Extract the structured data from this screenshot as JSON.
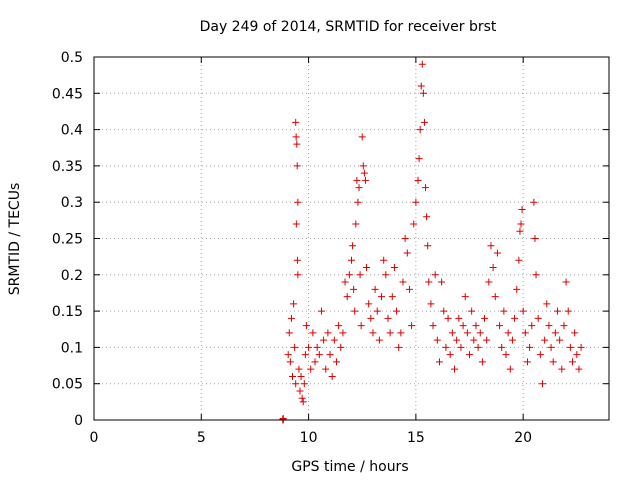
{
  "chart_data": {
    "type": "scatter",
    "title": "Day 249 of 2014, SRMTID for receiver brst",
    "xlabel": "GPS time / hours",
    "ylabel": "SRMTID / TECUs",
    "xlim": [
      0,
      24
    ],
    "ylim": [
      0,
      0.5
    ],
    "xticks": [
      0,
      5,
      10,
      15,
      20
    ],
    "xtick_labels": [
      "0",
      "5",
      "10",
      "15",
      "20"
    ],
    "yticks": [
      0,
      0.05,
      0.1,
      0.15,
      0.2,
      0.25,
      0.3,
      0.35,
      0.4,
      0.45,
      0.5
    ],
    "ytick_labels": [
      "0",
      "0.05",
      "0.1",
      "0.15",
      "0.2",
      "0.25",
      "0.3",
      "0.35",
      "0.4",
      "0.45",
      "0.5"
    ],
    "grid": true,
    "marker": "+",
    "series": [
      {
        "name": "SRMTID",
        "color": "#e00000",
        "points": [
          [
            8.8,
            0.0
          ],
          [
            8.8,
            0.001
          ],
          [
            8.82,
            0.0
          ],
          [
            8.82,
            0.002
          ],
          [
            9.05,
            0.09
          ],
          [
            9.1,
            0.12
          ],
          [
            9.15,
            0.08
          ],
          [
            9.2,
            0.14
          ],
          [
            9.25,
            0.06
          ],
          [
            9.3,
            0.16
          ],
          [
            9.35,
            0.1
          ],
          [
            9.4,
            0.05
          ],
          [
            9.4,
            0.41
          ],
          [
            9.42,
            0.39
          ],
          [
            9.45,
            0.38
          ],
          [
            9.47,
            0.35
          ],
          [
            9.5,
            0.3
          ],
          [
            9.43,
            0.27
          ],
          [
            9.48,
            0.22
          ],
          [
            9.5,
            0.2
          ],
          [
            9.55,
            0.07
          ],
          [
            9.6,
            0.04
          ],
          [
            9.65,
            0.06
          ],
          [
            9.7,
            0.03
          ],
          [
            9.75,
            0.025
          ],
          [
            9.8,
            0.05
          ],
          [
            9.85,
            0.09
          ],
          [
            9.9,
            0.13
          ],
          [
            10.0,
            0.1
          ],
          [
            10.1,
            0.07
          ],
          [
            10.2,
            0.12
          ],
          [
            10.3,
            0.08
          ],
          [
            10.4,
            0.1
          ],
          [
            10.5,
            0.09
          ],
          [
            10.6,
            0.15
          ],
          [
            10.7,
            0.11
          ],
          [
            10.8,
            0.07
          ],
          [
            10.9,
            0.12
          ],
          [
            11.0,
            0.09
          ],
          [
            11.1,
            0.06
          ],
          [
            11.2,
            0.11
          ],
          [
            11.3,
            0.08
          ],
          [
            11.4,
            0.13
          ],
          [
            11.5,
            0.1
          ],
          [
            11.6,
            0.12
          ],
          [
            11.7,
            0.19
          ],
          [
            11.8,
            0.17
          ],
          [
            11.9,
            0.2
          ],
          [
            12.0,
            0.22
          ],
          [
            12.05,
            0.24
          ],
          [
            12.1,
            0.18
          ],
          [
            12.15,
            0.15
          ],
          [
            12.2,
            0.27
          ],
          [
            12.25,
            0.33
          ],
          [
            12.3,
            0.3
          ],
          [
            12.35,
            0.32
          ],
          [
            12.4,
            0.2
          ],
          [
            12.45,
            0.13
          ],
          [
            12.5,
            0.39
          ],
          [
            12.55,
            0.35
          ],
          [
            12.6,
            0.34
          ],
          [
            12.65,
            0.33
          ],
          [
            12.7,
            0.21
          ],
          [
            12.8,
            0.16
          ],
          [
            12.9,
            0.14
          ],
          [
            13.0,
            0.12
          ],
          [
            13.1,
            0.18
          ],
          [
            13.2,
            0.15
          ],
          [
            13.3,
            0.11
          ],
          [
            13.4,
            0.17
          ],
          [
            13.5,
            0.22
          ],
          [
            13.6,
            0.2
          ],
          [
            13.7,
            0.14
          ],
          [
            13.8,
            0.12
          ],
          [
            13.9,
            0.17
          ],
          [
            14.0,
            0.21
          ],
          [
            14.1,
            0.15
          ],
          [
            14.2,
            0.1
          ],
          [
            14.3,
            0.12
          ],
          [
            14.4,
            0.19
          ],
          [
            14.5,
            0.25
          ],
          [
            14.6,
            0.23
          ],
          [
            14.7,
            0.18
          ],
          [
            14.8,
            0.13
          ],
          [
            14.9,
            0.27
          ],
          [
            15.0,
            0.3
          ],
          [
            15.1,
            0.33
          ],
          [
            15.15,
            0.36
          ],
          [
            15.2,
            0.4
          ],
          [
            15.25,
            0.46
          ],
          [
            15.3,
            0.49
          ],
          [
            15.35,
            0.45
          ],
          [
            15.4,
            0.41
          ],
          [
            15.45,
            0.32
          ],
          [
            15.5,
            0.28
          ],
          [
            15.55,
            0.24
          ],
          [
            15.6,
            0.19
          ],
          [
            15.7,
            0.16
          ],
          [
            15.8,
            0.13
          ],
          [
            15.9,
            0.2
          ],
          [
            16.0,
            0.11
          ],
          [
            16.1,
            0.08
          ],
          [
            16.2,
            0.19
          ],
          [
            16.3,
            0.15
          ],
          [
            16.4,
            0.1
          ],
          [
            16.5,
            0.14
          ],
          [
            16.6,
            0.09
          ],
          [
            16.7,
            0.12
          ],
          [
            16.8,
            0.07
          ],
          [
            16.9,
            0.11
          ],
          [
            17.0,
            0.14
          ],
          [
            17.1,
            0.1
          ],
          [
            17.2,
            0.13
          ],
          [
            17.3,
            0.17
          ],
          [
            17.4,
            0.12
          ],
          [
            17.5,
            0.09
          ],
          [
            17.6,
            0.15
          ],
          [
            17.7,
            0.11
          ],
          [
            17.8,
            0.13
          ],
          [
            17.9,
            0.1
          ],
          [
            18.0,
            0.12
          ],
          [
            18.1,
            0.08
          ],
          [
            18.2,
            0.14
          ],
          [
            18.3,
            0.11
          ],
          [
            18.4,
            0.19
          ],
          [
            18.5,
            0.24
          ],
          [
            18.6,
            0.21
          ],
          [
            18.7,
            0.17
          ],
          [
            18.8,
            0.23
          ],
          [
            18.9,
            0.13
          ],
          [
            19.0,
            0.1
          ],
          [
            19.1,
            0.15
          ],
          [
            19.2,
            0.09
          ],
          [
            19.3,
            0.12
          ],
          [
            19.4,
            0.07
          ],
          [
            19.5,
            0.11
          ],
          [
            19.6,
            0.14
          ],
          [
            19.7,
            0.18
          ],
          [
            19.8,
            0.22
          ],
          [
            19.85,
            0.26
          ],
          [
            19.9,
            0.27
          ],
          [
            19.95,
            0.29
          ],
          [
            20.0,
            0.15
          ],
          [
            20.1,
            0.12
          ],
          [
            20.2,
            0.08
          ],
          [
            20.3,
            0.1
          ],
          [
            20.4,
            0.13
          ],
          [
            20.5,
            0.3
          ],
          [
            20.55,
            0.25
          ],
          [
            20.6,
            0.2
          ],
          [
            20.7,
            0.14
          ],
          [
            20.8,
            0.09
          ],
          [
            20.9,
            0.05
          ],
          [
            21.0,
            0.11
          ],
          [
            21.1,
            0.16
          ],
          [
            21.2,
            0.13
          ],
          [
            21.3,
            0.1
          ],
          [
            21.4,
            0.08
          ],
          [
            21.5,
            0.12
          ],
          [
            21.6,
            0.15
          ],
          [
            21.7,
            0.11
          ],
          [
            21.8,
            0.07
          ],
          [
            21.9,
            0.13
          ],
          [
            22.0,
            0.19
          ],
          [
            22.1,
            0.15
          ],
          [
            22.2,
            0.1
          ],
          [
            22.3,
            0.08
          ],
          [
            22.4,
            0.12
          ],
          [
            22.5,
            0.09
          ],
          [
            22.6,
            0.07
          ],
          [
            22.7,
            0.1
          ]
        ]
      }
    ]
  }
}
